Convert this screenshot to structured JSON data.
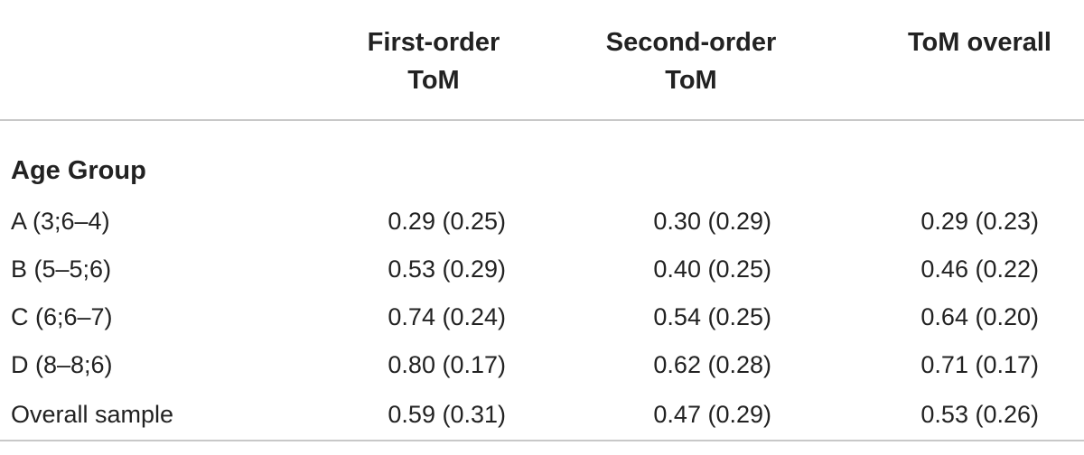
{
  "table": {
    "headers": [
      "",
      "First-order ToM",
      "Second-order ToM",
      "ToM overall"
    ],
    "header_lines": [
      [
        "",
        ""
      ],
      [
        "First-order",
        "ToM"
      ],
      [
        "Second-order",
        "ToM"
      ],
      [
        "ToM overall",
        ""
      ]
    ],
    "section_label": "Age Group",
    "rows": [
      {
        "label": "A (3;6–4)",
        "first": "0.29 (0.25)",
        "second": "0.30 (0.29)",
        "overall": "0.29 (0.23)"
      },
      {
        "label": "B (5–5;6)",
        "first": "0.53 (0.29)",
        "second": "0.40 (0.25)",
        "overall": "0.46 (0.22)"
      },
      {
        "label": "C (6;6–7)",
        "first": "0.74 (0.24)",
        "second": "0.54 (0.25)",
        "overall": "0.64 (0.20)"
      },
      {
        "label": "D (8–8;6)",
        "first": "0.80 (0.17)",
        "second": "0.62 (0.28)",
        "overall": "0.71 (0.17)"
      },
      {
        "label": "Overall sample",
        "first": "0.59 (0.31)",
        "second": "0.47 (0.29)",
        "overall": "0.53 (0.26)"
      }
    ]
  },
  "colors": {
    "text": "#222222",
    "rule": "#c8c8c8",
    "background": "#ffffff"
  }
}
